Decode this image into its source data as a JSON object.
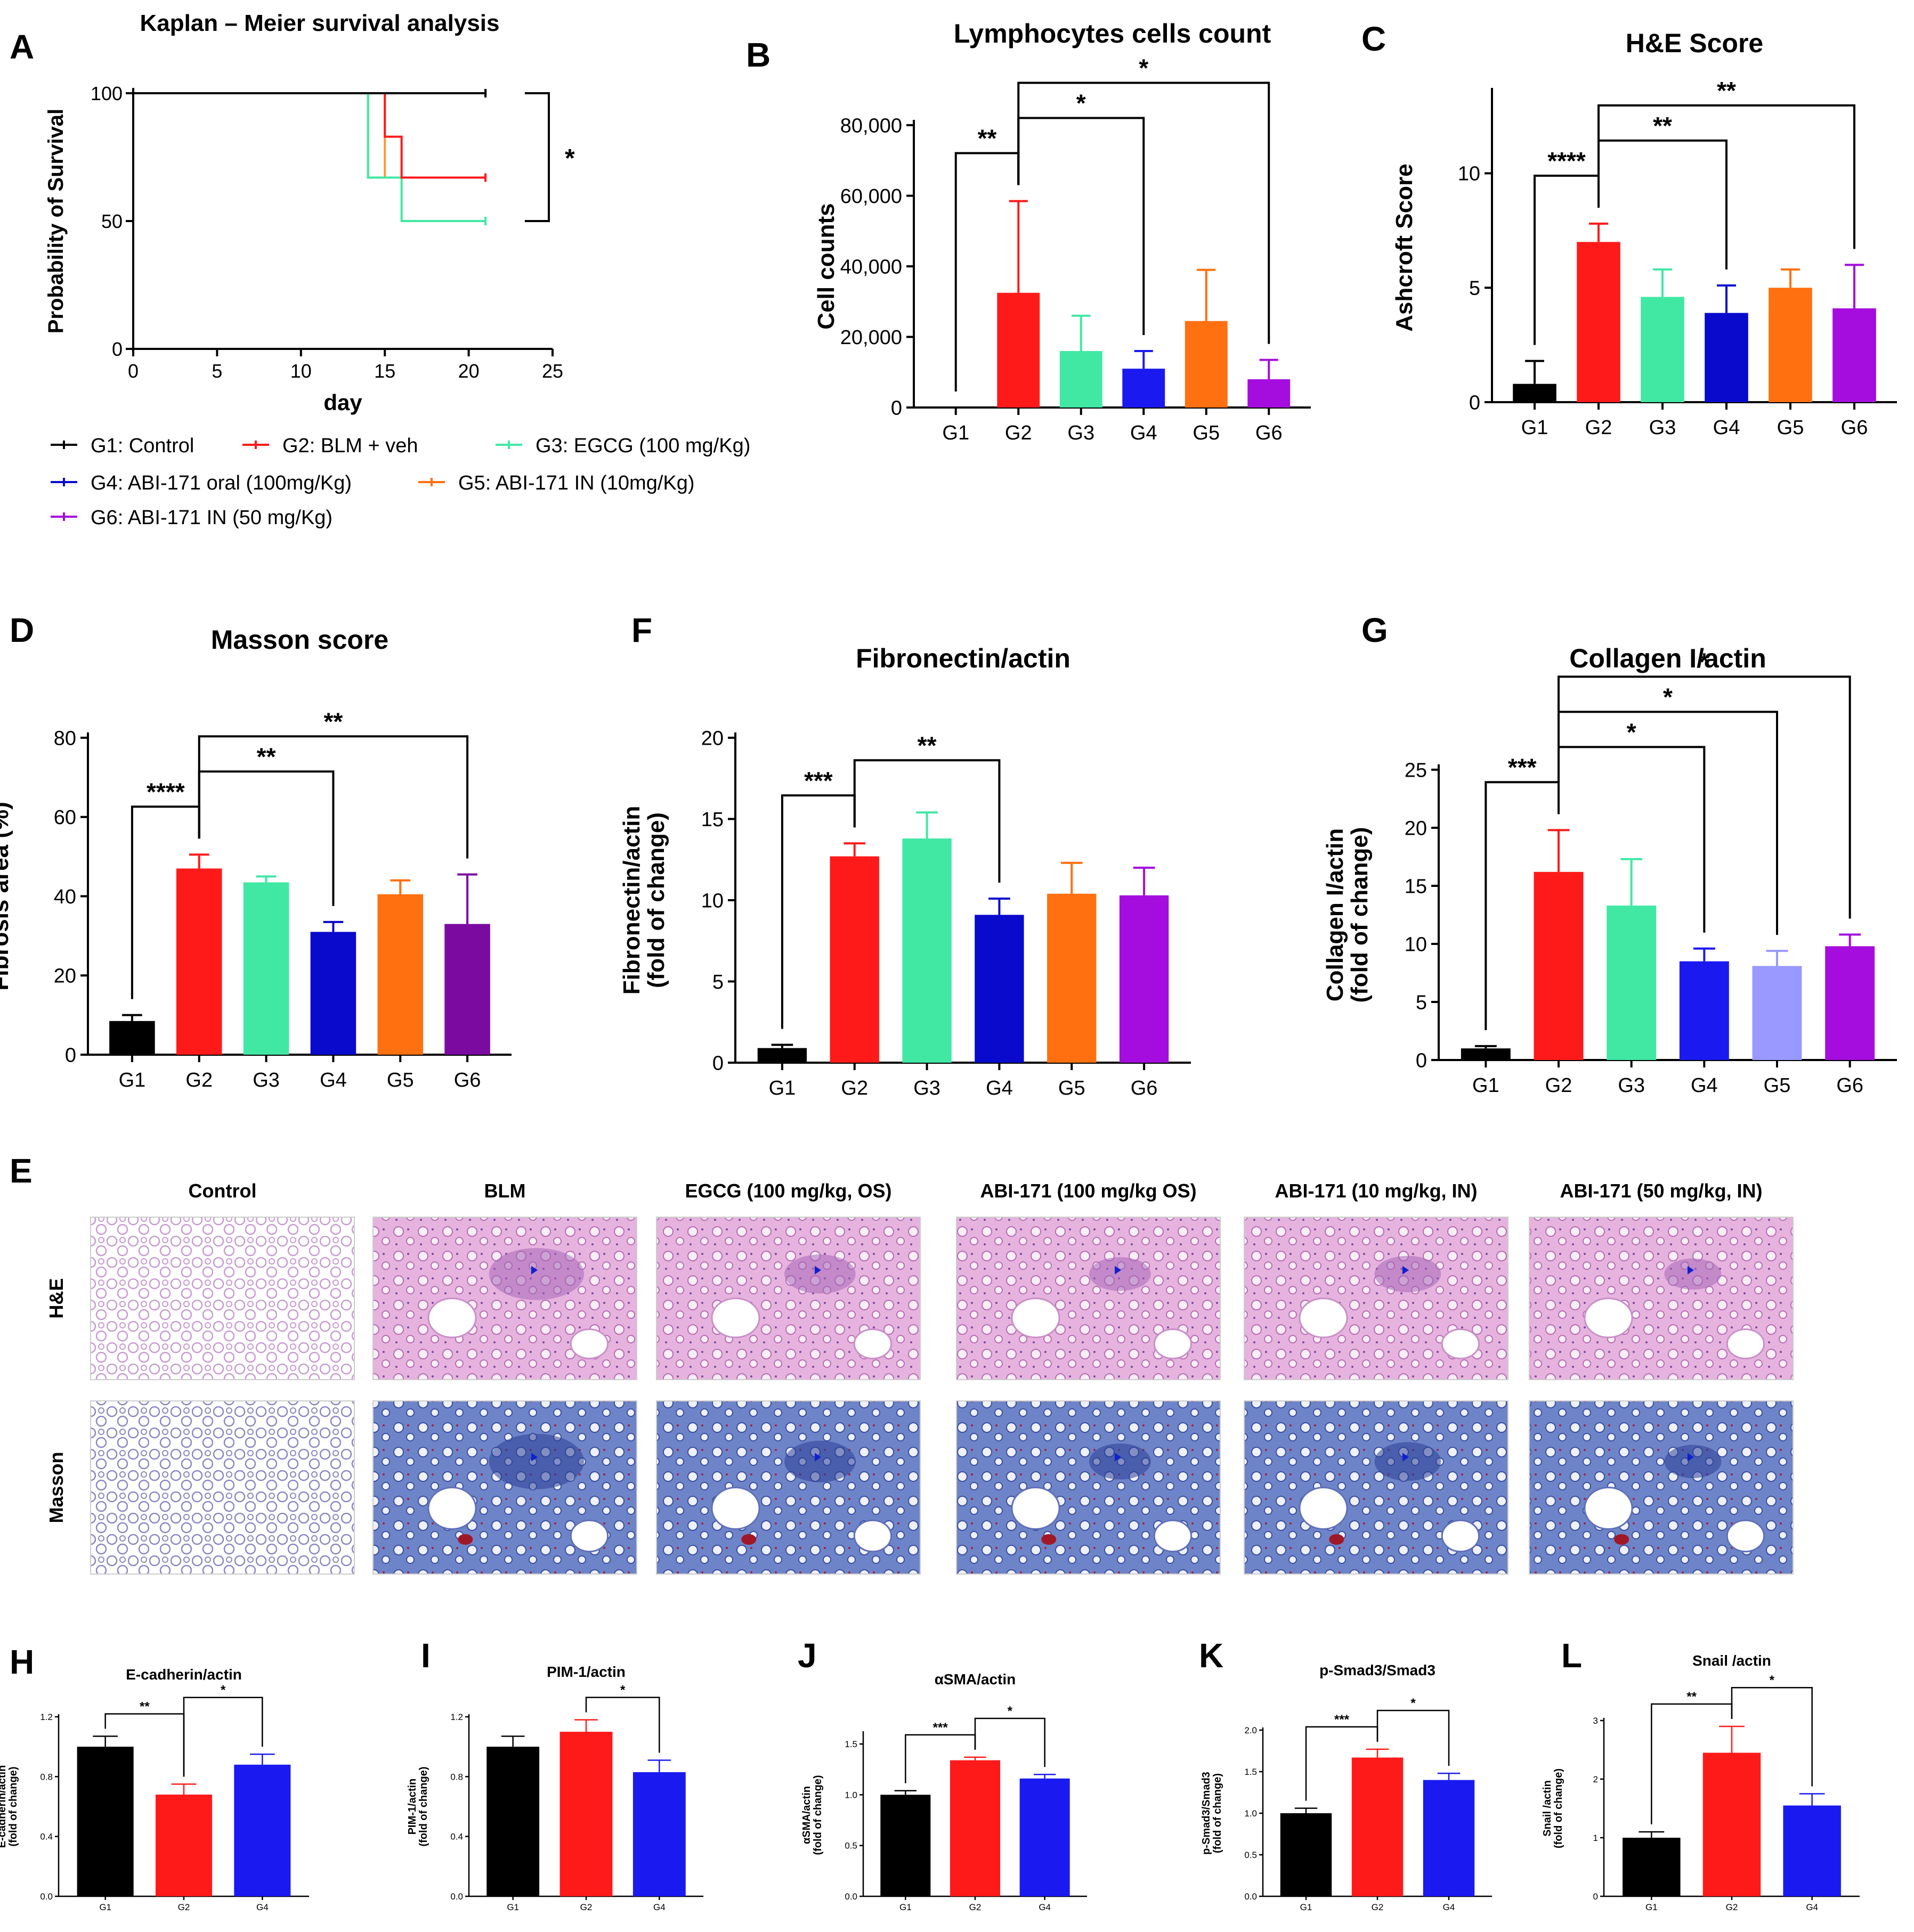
{
  "colors": {
    "G1": "#000000",
    "G2": "#ff1a1a",
    "G3": "#40e8a4",
    "G4": "#0a0acc",
    "G4b": "#1a1af0",
    "G5": "#ff7010",
    "G5light": "#9999ff",
    "G6": "#a40ddd",
    "G6dark": "#7a0aa0",
    "km_orange": "#ff9a30",
    "axis": "#000000",
    "bracket": "#000000"
  },
  "legend": {
    "items": [
      {
        "label": "G1: Control",
        "color": "#000000"
      },
      {
        "label": "G2: BLM + veh",
        "color": "#ff1a1a"
      },
      {
        "label": "G3: EGCG (100 mg/Kg)",
        "color": "#40e8a4"
      },
      {
        "label": "G4: ABI-171 oral (100mg/Kg)",
        "color": "#0a0acc"
      },
      {
        "label": "G5: ABI-171 IN (10mg/Kg)",
        "color": "#ff7010"
      },
      {
        "label": "G6: ABI-171 IN (50 mg/Kg)",
        "color": "#a40ddd"
      }
    ]
  },
  "chart_data": [
    {
      "id": "A",
      "panel_label": "A",
      "type": "line",
      "title": "Kaplan – Meier survival analysis",
      "xlabel": "day",
      "ylabel": "Probability of Survival",
      "xlim": [
        0,
        25
      ],
      "ylim": [
        0,
        100
      ],
      "xticks": [
        "0",
        "5",
        "10",
        "15",
        "20",
        "25"
      ],
      "yticks": [
        "0",
        "50",
        "100"
      ],
      "sig": [
        {
          "label": "*"
        }
      ],
      "series": [
        {
          "name": "G6",
          "color": "#a40ddd",
          "points": [
            [
              0,
              100
            ],
            [
              21,
              100
            ]
          ]
        },
        {
          "name": "G5",
          "color": "#ff9a30",
          "points": [
            [
              0,
              100
            ],
            [
              14,
              100
            ],
            [
              14,
              67
            ],
            [
              15,
              67
            ],
            [
              15,
              100
            ],
            [
              21,
              100
            ]
          ]
        },
        {
          "name": "G4",
          "color": "#0a0acc",
          "points": [
            [
              0,
              100
            ],
            [
              21,
              100
            ]
          ]
        },
        {
          "name": "G3",
          "color": "#40e8a4",
          "points": [
            [
              0,
              100
            ],
            [
              14,
              100
            ],
            [
              14,
              67
            ],
            [
              16,
              67
            ],
            [
              16,
              50
            ],
            [
              21,
              50
            ]
          ]
        },
        {
          "name": "G2",
          "color": "#ff1a1a",
          "points": [
            [
              0,
              100
            ],
            [
              15,
              100
            ],
            [
              15,
              83
            ],
            [
              16,
              83
            ],
            [
              16,
              67
            ],
            [
              21,
              67
            ]
          ]
        },
        {
          "name": "G1",
          "color": "#000000",
          "points": [
            [
              0,
              100
            ],
            [
              21,
              100
            ]
          ]
        }
      ]
    },
    {
      "id": "B",
      "panel_label": "B",
      "type": "bar",
      "title": "Lymphocytes cells count",
      "ylabel": "Cell counts",
      "ylim": [
        0,
        80000
      ],
      "yticks": [
        "0",
        "20,000",
        "40,000",
        "60,000",
        "80,000"
      ],
      "categories": [
        "G1",
        "G2",
        "G3",
        "G4",
        "G5",
        "G6"
      ],
      "values": [
        0,
        32500,
        16000,
        11000,
        24500,
        8000
      ],
      "errors": [
        0,
        26000,
        10000,
        5000,
        14500,
        5500
      ],
      "colors": [
        "#000000",
        "#ff1a1a",
        "#40e8a4",
        "#1a1af0",
        "#ff7010",
        "#a40ddd"
      ],
      "sig": [
        {
          "from": 0,
          "to": 1,
          "label": "**"
        },
        {
          "from": 1,
          "to": 3,
          "label": "*"
        },
        {
          "from": 1,
          "to": 5,
          "label": "*"
        }
      ]
    },
    {
      "id": "C",
      "panel_label": "C",
      "type": "bar",
      "title": "H&E Score",
      "ylabel": "Ashcroft Score",
      "ylim": [
        0,
        13.5
      ],
      "yticks": [
        "0",
        "5",
        "10"
      ],
      "ytick_values": [
        0,
        5,
        10
      ],
      "categories": [
        "G1",
        "G2",
        "G3",
        "G4",
        "G5",
        "G6"
      ],
      "values": [
        0.8,
        7.0,
        4.6,
        3.9,
        5.0,
        4.1
      ],
      "errors": [
        1.0,
        0.8,
        1.2,
        1.2,
        0.8,
        1.9
      ],
      "colors": [
        "#000000",
        "#ff1a1a",
        "#40e8a4",
        "#0a0acc",
        "#ff7010",
        "#a40ddd"
      ],
      "sig": [
        {
          "from": 0,
          "to": 1,
          "label": "****"
        },
        {
          "from": 1,
          "to": 3,
          "label": "**"
        },
        {
          "from": 1,
          "to": 5,
          "label": "**"
        }
      ]
    },
    {
      "id": "D",
      "panel_label": "D",
      "type": "bar",
      "title": "Masson score",
      "ylabel": "Fibrosis area (%)",
      "ylim": [
        0,
        80
      ],
      "yticks": [
        "0",
        "20",
        "40",
        "60",
        "80"
      ],
      "categories": [
        "G1",
        "G2",
        "G3",
        "G4",
        "G5",
        "G6"
      ],
      "values": [
        8.5,
        47,
        43.5,
        31,
        40.5,
        33
      ],
      "errors": [
        1.5,
        3.5,
        1.5,
        2.5,
        3.5,
        12.5
      ],
      "colors": [
        "#000000",
        "#ff1a1a",
        "#40e8a4",
        "#0a0acc",
        "#ff7010",
        "#7a0aa0"
      ],
      "sig": [
        {
          "from": 0,
          "to": 1,
          "label": "****"
        },
        {
          "from": 1,
          "to": 3,
          "label": "**"
        },
        {
          "from": 1,
          "to": 5,
          "label": "**"
        }
      ]
    },
    {
      "id": "F",
      "panel_label": "F",
      "type": "bar",
      "title": "Fibronectin/actin",
      "ylabel": "Fibronectin/actin",
      "ylabel2": "(fold of change)",
      "ylim": [
        0,
        20
      ],
      "yticks": [
        "0",
        "5",
        "10",
        "15",
        "20"
      ],
      "categories": [
        "G1",
        "G2",
        "G3",
        "G4",
        "G5",
        "G6"
      ],
      "values": [
        0.9,
        12.7,
        13.8,
        9.1,
        10.4,
        10.3
      ],
      "errors": [
        0.2,
        0.8,
        1.6,
        1.0,
        1.9,
        1.7
      ],
      "colors": [
        "#000000",
        "#ff1a1a",
        "#40e8a4",
        "#0a0acc",
        "#ff7010",
        "#a40ddd"
      ],
      "sig": [
        {
          "from": 0,
          "to": 1,
          "label": "***"
        },
        {
          "from": 1,
          "to": 3,
          "label": "**"
        }
      ]
    },
    {
      "id": "G",
      "panel_label": "G",
      "type": "bar",
      "title": "Collagen I/actin",
      "ylabel": "Collagen I/actin",
      "ylabel2": "(fold of change)",
      "ylim": [
        0,
        25
      ],
      "yticks": [
        "0",
        "5",
        "10",
        "15",
        "20",
        "25"
      ],
      "categories": [
        "G1",
        "G2",
        "G3",
        "G4",
        "G5",
        "G6"
      ],
      "values": [
        1.0,
        16.2,
        13.3,
        8.5,
        8.1,
        9.8
      ],
      "errors": [
        0.2,
        3.6,
        4.0,
        1.1,
        1.3,
        1.0
      ],
      "colors": [
        "#000000",
        "#ff1a1a",
        "#40e8a4",
        "#1a1af0",
        "#9999ff",
        "#a40ddd"
      ],
      "sig": [
        {
          "from": 0,
          "to": 1,
          "label": "***"
        },
        {
          "from": 1,
          "to": 3,
          "label": "*"
        },
        {
          "from": 1,
          "to": 4,
          "label": "*"
        },
        {
          "from": 1,
          "to": 5,
          "label": "*"
        }
      ]
    },
    {
      "id": "H",
      "panel_label": "H",
      "type": "bar",
      "title": "E-cadherin/actin",
      "ylabel": "E-cadherin/actin",
      "ylabel2": "(fold of change)",
      "ylim": [
        0,
        1.2
      ],
      "yticks": [
        "0.0",
        "0.4",
        "0.8",
        "1.2"
      ],
      "categories": [
        "G1",
        "G2",
        "G4"
      ],
      "values": [
        1.0,
        0.68,
        0.88
      ],
      "errors": [
        0.07,
        0.07,
        0.07
      ],
      "colors": [
        "#000000",
        "#ff1a1a",
        "#1a1af0"
      ],
      "sig": [
        {
          "from": 0,
          "to": 1,
          "label": "**"
        },
        {
          "from": 1,
          "to": 2,
          "label": "*"
        }
      ]
    },
    {
      "id": "I",
      "panel_label": "I",
      "type": "bar",
      "title": "PIM-1/actin",
      "ylabel": "PIM-1/actin",
      "ylabel2": "(fold of change)",
      "ylim": [
        0,
        1.2
      ],
      "yticks": [
        "0.0",
        "0.4",
        "0.8",
        "1.2"
      ],
      "categories": [
        "G1",
        "G2",
        "G4"
      ],
      "values": [
        1.0,
        1.1,
        0.83
      ],
      "errors": [
        0.07,
        0.08,
        0.08
      ],
      "colors": [
        "#000000",
        "#ff1a1a",
        "#1a1af0"
      ],
      "sig": [
        {
          "from": 1,
          "to": 2,
          "label": "*"
        }
      ]
    },
    {
      "id": "J",
      "panel_label": "J",
      "type": "bar",
      "title": "αSMA/actin",
      "ylabel": "αSMA/actin",
      "ylabel2": "(fold of change)",
      "ylim": [
        0,
        1.6
      ],
      "yticks": [
        "0.0",
        "0.5",
        "1.0",
        "1.5"
      ],
      "ytick_values": [
        0,
        0.5,
        1.0,
        1.5
      ],
      "categories": [
        "G1",
        "G2",
        "G4"
      ],
      "values": [
        1.0,
        1.34,
        1.16
      ],
      "errors": [
        0.04,
        0.03,
        0.04
      ],
      "colors": [
        "#000000",
        "#ff1a1a",
        "#1a1af0"
      ],
      "sig": [
        {
          "from": 0,
          "to": 1,
          "label": "***"
        },
        {
          "from": 1,
          "to": 2,
          "label": "*"
        }
      ]
    },
    {
      "id": "K",
      "panel_label": "K",
      "type": "bar",
      "title": "p-Smad3/Smad3",
      "ylabel": "p-Smad3/Smad3",
      "ylabel2": "(fold of change)",
      "ylim": [
        0,
        2.0
      ],
      "yticks": [
        "0.0",
        "0.5",
        "1.0",
        "1.5",
        "2.0"
      ],
      "categories": [
        "G1",
        "G2",
        "G4"
      ],
      "values": [
        1.0,
        1.67,
        1.4
      ],
      "errors": [
        0.06,
        0.1,
        0.08
      ],
      "colors": [
        "#000000",
        "#ff1a1a",
        "#1a1af0"
      ],
      "sig": [
        {
          "from": 0,
          "to": 1,
          "label": "***"
        },
        {
          "from": 1,
          "to": 2,
          "label": "*"
        }
      ]
    },
    {
      "id": "L",
      "panel_label": "L",
      "type": "bar",
      "title": "Snail /actin",
      "ylabel": "Snail /actin",
      "ylabel2": "(fold of change)",
      "ylim": [
        0,
        3
      ],
      "yticks": [
        "0",
        "1",
        "2",
        "3"
      ],
      "categories": [
        "G1",
        "G2",
        "G4"
      ],
      "values": [
        1.0,
        2.45,
        1.55
      ],
      "errors": [
        0.1,
        0.45,
        0.2
      ],
      "colors": [
        "#000000",
        "#ff1a1a",
        "#1a1af0"
      ],
      "sig": [
        {
          "from": 0,
          "to": 1,
          "label": "**"
        },
        {
          "from": 1,
          "to": 2,
          "label": "*"
        }
      ]
    }
  ],
  "histology": {
    "panel_label": "E",
    "column_titles": [
      "Control",
      "BLM",
      "EGCG (100 mg/kg, OS)",
      "ABI-171 (100 mg/kg OS)",
      "ABI-171 (10 mg/kg, IN)",
      "ABI-171 (50 mg/kg, IN)"
    ],
    "row_labels": [
      "H&E",
      "Masson"
    ],
    "fibrosis_level": [
      0,
      1.0,
      0.75,
      0.65,
      0.7,
      0.6
    ]
  }
}
